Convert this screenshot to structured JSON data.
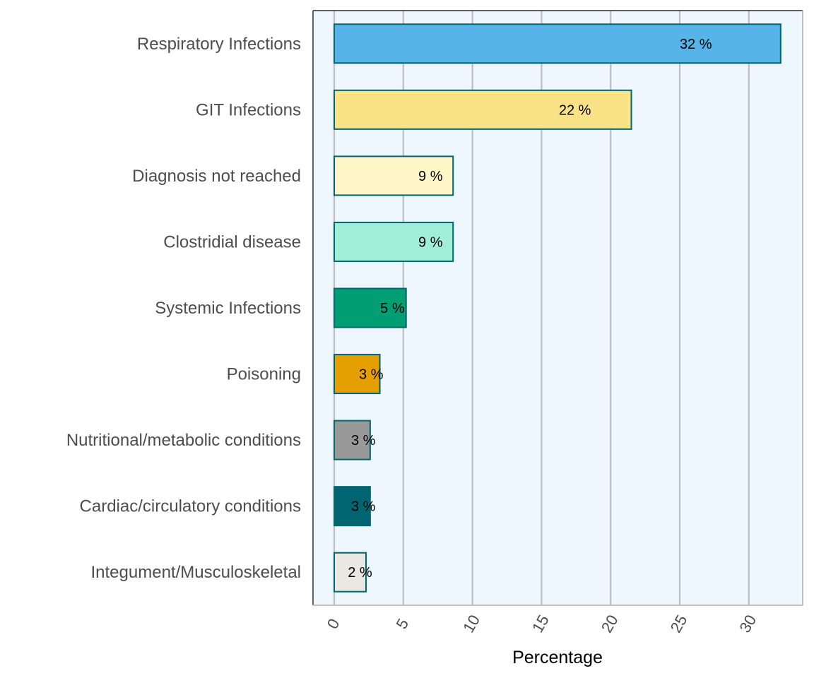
{
  "chart_data": {
    "type": "bar",
    "orientation": "horizontal",
    "title": "",
    "xlabel": "Percentage",
    "ylabel": "",
    "xlim": [
      -1.5,
      33.8
    ],
    "xticks": [
      0,
      5,
      10,
      15,
      20,
      25,
      30
    ],
    "xtick_labels": [
      "0",
      "5",
      "10",
      "15",
      "20",
      "25",
      "30"
    ],
    "xtick_rotation_deg": 60,
    "grid": "vertical-major",
    "legend": "none",
    "categories": [
      "Respiratory Infections",
      "GIT Infections",
      "Diagnosis not reached",
      "Clostridial disease",
      "Systemic Infections",
      "Poisoning",
      "Nutritional/metabolic conditions",
      "Cardiac/circulatory conditions",
      "Integument/Musculoskeletal"
    ],
    "values": [
      32.3,
      21.5,
      8.6,
      8.6,
      5.2,
      3.3,
      2.6,
      2.6,
      2.3
    ],
    "data_labels": [
      "32 %",
      "22 %",
      "9 %",
      "9 %",
      "5 %",
      "3 %",
      "3 %",
      "3 %",
      "2 %"
    ],
    "bar_colors": [
      "#56B4E9",
      "#FAE286",
      "#FFF7C8",
      "#A0EDD8",
      "#009E73",
      "#E69F00",
      "#999999",
      "#006570",
      "#EBE8E3"
    ],
    "bar_outline_color": "#006570",
    "panel_background": "#EFF7FE",
    "grid_color": "#BEBEBE"
  }
}
